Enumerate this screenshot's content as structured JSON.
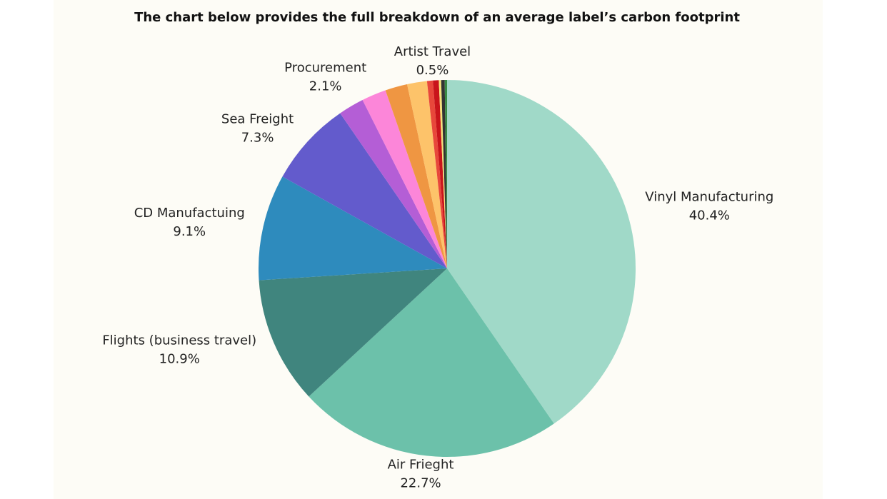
{
  "chart_data": {
    "type": "pie",
    "title": "The chart below provides the full breakdown of an average label’s carbon footprint",
    "categories": [
      "Vinyl Manufacturing",
      "Air Frieght",
      "Flights (business travel)",
      "CD Manufactuing",
      "Sea Freight",
      null,
      "Procurement",
      null,
      null,
      null,
      "Artist Travel",
      null,
      null,
      null
    ],
    "values": [
      40.4,
      22.7,
      10.9,
      9.1,
      7.3,
      2.2,
      2.1,
      1.9,
      1.7,
      0.5,
      0.5,
      0.2,
      0.3,
      0.2
    ],
    "value_labels": [
      "40.4%",
      "22.7%",
      "10.9%",
      "9.1%",
      "7.3%",
      null,
      "2.1%",
      null,
      null,
      null,
      "0.5%",
      null,
      null,
      null
    ],
    "colors": [
      "#a0d9c8",
      "#6cc1aa",
      "#40857e",
      "#2e8bbd",
      "#635bcc",
      "#b45ed6",
      "#fc86d9",
      "#ef9642",
      "#fdc36a",
      "#e8473b",
      "#c9141b",
      "#f5e27a",
      "#333333",
      "#3a8a44"
    ]
  }
}
